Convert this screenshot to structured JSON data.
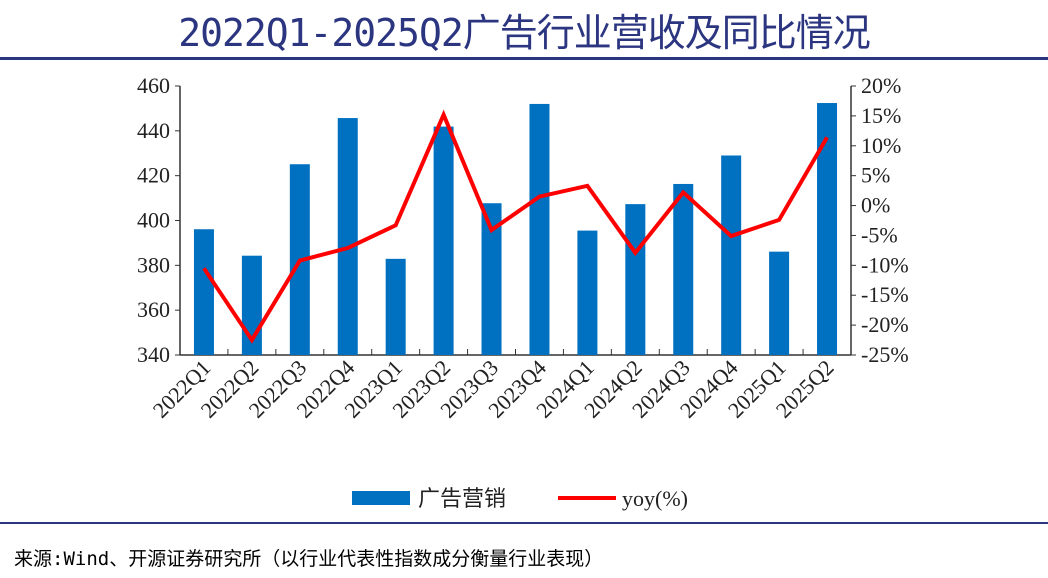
{
  "title": "2022Q1-2025Q2广告行业营收及同比情况",
  "source": "来源:Wind、开源证券研究所（以行业代表性指数成分衡量行业表现）",
  "chart_data": {
    "type": "bar+line",
    "title": "2022Q1-2025Q2广告行业营收及同比情况",
    "categories": [
      "2022Q1",
      "2022Q2",
      "2022Q3",
      "2022Q4",
      "2023Q1",
      "2023Q2",
      "2023Q3",
      "2023Q4",
      "2024Q1",
      "2024Q2",
      "2024Q3",
      "2024Q4",
      "2025Q1",
      "2025Q2"
    ],
    "series": [
      {
        "name": "广告营销",
        "type": "bar",
        "axis": "left",
        "color": "#0070c0",
        "values": [
          396.1,
          384.3,
          425.1,
          445.7,
          382.9,
          441.9,
          407.7,
          452.0,
          395.5,
          407.3,
          416.3,
          429.0,
          386.1,
          452.4
        ]
      },
      {
        "name": "yoy(%)",
        "type": "line",
        "axis": "right",
        "color": "#ff0000",
        "values": [
          -10.5,
          -22.5,
          -9.2,
          -7.1,
          -3.3,
          15.2,
          -4.1,
          1.5,
          3.3,
          -7.9,
          2.2,
          -5.1,
          -2.4,
          11.4
        ]
      }
    ],
    "y_left": {
      "range": [
        340,
        460
      ],
      "ticks": [
        "340",
        "360",
        "380",
        "400",
        "420",
        "440",
        "460"
      ]
    },
    "y_right": {
      "range": [
        -25,
        20
      ],
      "ticks": [
        "-25%",
        "-20%",
        "-15%",
        "-10%",
        "-5%",
        "0%",
        "5%",
        "10%",
        "15%",
        "20%"
      ]
    },
    "grid": false,
    "legend": "bottom"
  }
}
